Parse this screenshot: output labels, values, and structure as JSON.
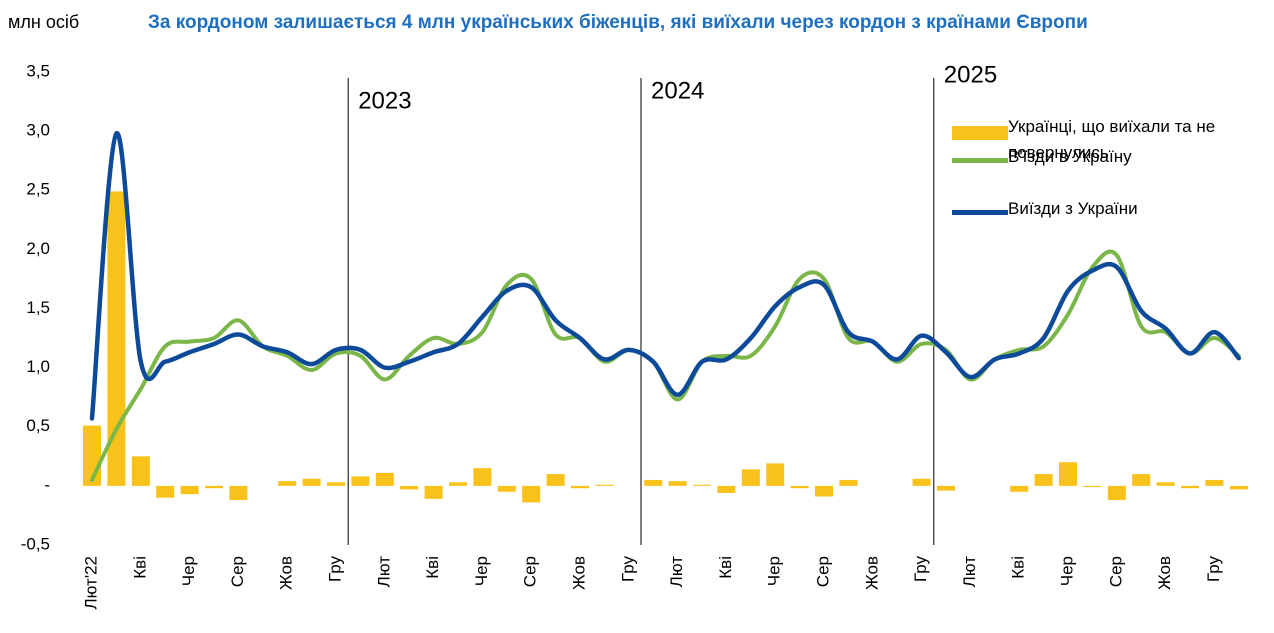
{
  "chart_data": {
    "type": "bar-line",
    "title": "За кордоном залишається 4 млн українських біженців, які виїхали через кордон з країнами Європи",
    "y_label": "млн осіб",
    "annotations": [
      "2023",
      "2024",
      "2025"
    ],
    "categories": [
      "Лют'22",
      null,
      "Кві",
      null,
      "Чер",
      null,
      "Сер",
      null,
      "Жов",
      null,
      "Гру",
      null,
      "Лют",
      null,
      "Кві",
      null,
      "Чер",
      null,
      "Сер",
      null,
      "Жов",
      null,
      "Гру",
      null,
      "Лют",
      null,
      "Кві",
      null,
      "Чер",
      null,
      "Сер",
      null,
      "Жов",
      null,
      "Гру",
      null,
      "Лют",
      null,
      "Кві",
      null,
      "Чер",
      null,
      "Сер",
      null,
      "Жов",
      null,
      "Гру",
      null
    ],
    "ylim": [
      -0.5,
      3.5
    ],
    "yticks": [
      {
        "value": -0.5,
        "label": "-0,5"
      },
      {
        "value": 0,
        "label": "-"
      },
      {
        "value": 0.5,
        "label": "0,5"
      },
      {
        "value": 1,
        "label": "1,0"
      },
      {
        "value": 1.5,
        "label": "1,5"
      },
      {
        "value": 2,
        "label": "2,0"
      },
      {
        "value": 2.5,
        "label": "2,5"
      },
      {
        "value": 3,
        "label": "3,0"
      },
      {
        "value": 3.5,
        "label": "3,5"
      }
    ],
    "series": [
      {
        "name": "Українці, що виїхали та не повернулись",
        "type": "bar",
        "color": "#f9c21b",
        "values": [
          0.51,
          2.49,
          0.25,
          -0.1,
          -0.07,
          -0.02,
          -0.12,
          0.0,
          0.04,
          0.06,
          0.03,
          0.08,
          0.11,
          -0.03,
          -0.11,
          0.03,
          0.15,
          -0.05,
          -0.14,
          0.1,
          -0.02,
          0.01,
          0.0,
          0.05,
          0.04,
          0.01,
          -0.06,
          0.14,
          0.19,
          -0.02,
          -0.09,
          0.05,
          0.0,
          0.0,
          0.06,
          -0.04,
          0.0,
          0.0,
          -0.05,
          0.1,
          0.2,
          -0.01,
          -0.12,
          0.1,
          0.03,
          -0.02,
          0.05,
          -0.03
        ]
      },
      {
        "name": "В'їзди в Україну",
        "type": "line",
        "color": "#7ab648",
        "values": [
          0.05,
          0.48,
          0.82,
          1.18,
          1.22,
          1.25,
          1.4,
          1.18,
          1.1,
          0.98,
          1.12,
          1.1,
          0.9,
          1.1,
          1.25,
          1.2,
          1.3,
          1.7,
          1.75,
          1.28,
          1.25,
          1.05,
          1.15,
          1.05,
          0.73,
          1.05,
          1.1,
          1.1,
          1.35,
          1.75,
          1.75,
          1.25,
          1.22,
          1.05,
          1.2,
          1.15,
          0.9,
          1.07,
          1.15,
          1.18,
          1.45,
          1.85,
          1.95,
          1.35,
          1.3,
          1.12,
          1.25,
          1.1
        ]
      },
      {
        "name": "Виїзди з України",
        "type": "line",
        "color": "#0d4a9a",
        "values": [
          0.57,
          2.98,
          1.05,
          1.05,
          1.13,
          1.2,
          1.28,
          1.18,
          1.13,
          1.03,
          1.15,
          1.15,
          1.0,
          1.05,
          1.13,
          1.2,
          1.43,
          1.65,
          1.68,
          1.4,
          1.25,
          1.07,
          1.15,
          1.05,
          0.77,
          1.05,
          1.07,
          1.25,
          1.52,
          1.68,
          1.7,
          1.3,
          1.22,
          1.07,
          1.27,
          1.13,
          0.92,
          1.07,
          1.12,
          1.25,
          1.65,
          1.82,
          1.85,
          1.48,
          1.33,
          1.12,
          1.3,
          1.08
        ]
      }
    ]
  }
}
